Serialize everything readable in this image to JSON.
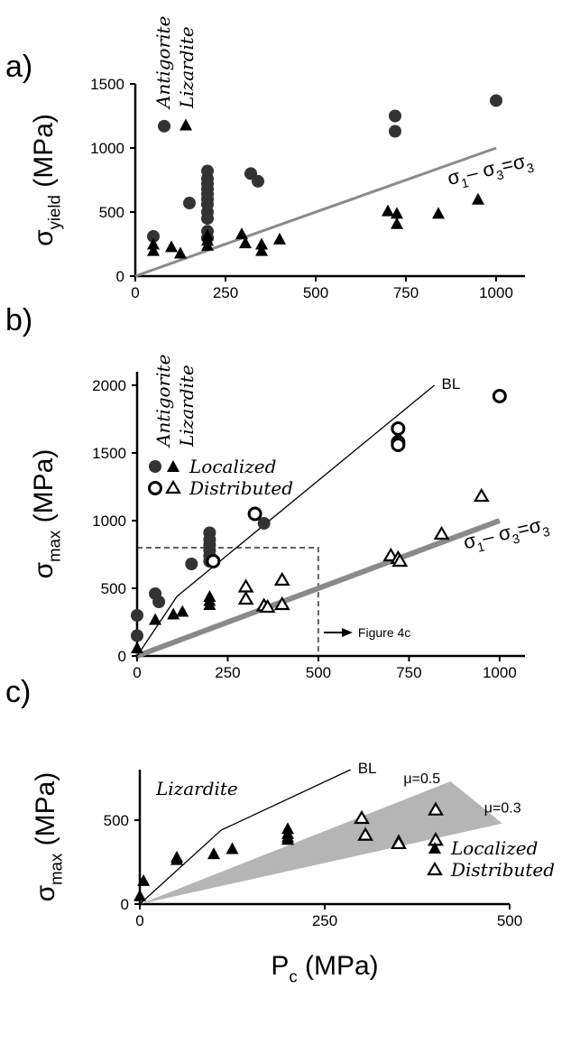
{
  "chart_data": [
    {
      "panel": "a)",
      "type": "scatter",
      "ylabel_symbol": "σ",
      "ylabel_sub": "yield",
      "ylabel_unit": "(MPa)",
      "xlabel": "",
      "xlim": [
        0,
        1080
      ],
      "ylim": [
        0,
        1500
      ],
      "xticks": [
        "0",
        "250",
        "500",
        "750",
        "1000"
      ],
      "yticks": [
        "0",
        "500",
        "1000",
        "1500"
      ],
      "mineral_labels": [
        "Antigorite",
        "Lizardite"
      ],
      "series": [
        {
          "name": "Antigorite",
          "marker": "filled-circle",
          "points": [
            [
              80,
              1170
            ],
            [
              50,
              310
            ],
            [
              150,
              570
            ],
            [
              200,
              820
            ],
            [
              200,
              760
            ],
            [
              200,
              720
            ],
            [
              200,
              680
            ],
            [
              200,
              640
            ],
            [
              200,
              600
            ],
            [
              200,
              560
            ],
            [
              200,
              500
            ],
            [
              200,
              450
            ],
            [
              200,
              350
            ],
            [
              200,
              300
            ],
            [
              320,
              800
            ],
            [
              340,
              740
            ],
            [
              720,
              1250
            ],
            [
              720,
              1130
            ],
            [
              1000,
              1370
            ]
          ]
        },
        {
          "name": "Lizardite",
          "marker": "filled-triangle",
          "points": [
            [
              140,
              1180
            ],
            [
              50,
              250
            ],
            [
              50,
              200
            ],
            [
              100,
              230
            ],
            [
              125,
              180
            ],
            [
              200,
              320
            ],
            [
              200,
              280
            ],
            [
              200,
              240
            ],
            [
              295,
              330
            ],
            [
              305,
              260
            ],
            [
              350,
              250
            ],
            [
              350,
              200
            ],
            [
              400,
              290
            ],
            [
              700,
              510
            ],
            [
              725,
              490
            ],
            [
              725,
              410
            ],
            [
              840,
              490
            ],
            [
              950,
              600
            ]
          ]
        }
      ],
      "reference_line": {
        "label_parts": [
          "σ",
          "1",
          "– ",
          "σ",
          "3",
          "=",
          "σ",
          "3"
        ],
        "points": [
          [
            0,
            0
          ],
          [
            1000,
            1000
          ]
        ]
      }
    },
    {
      "panel": "b)",
      "type": "scatter",
      "ylabel_symbol": "σ",
      "ylabel_sub": "max",
      "ylabel_unit": "(MPa)",
      "xlabel": "",
      "xlim": [
        0,
        1070
      ],
      "ylim": [
        0,
        2100
      ],
      "xticks": [
        "0",
        "250",
        "500",
        "750",
        "1000"
      ],
      "yticks": [
        "0",
        "500",
        "1000",
        "1500",
        "2000"
      ],
      "mineral_labels": [
        "Antigorite",
        "Lizardite"
      ],
      "legend": [
        {
          "marker": "filled-circle",
          "marker2": "filled-triangle",
          "label": "Localized"
        },
        {
          "marker": "open-circle",
          "marker2": "open-triangle",
          "label": "Distributed"
        }
      ],
      "series": [
        {
          "name": "Antigorite localized",
          "marker": "filled-circle",
          "points": [
            [
              0,
              300
            ],
            [
              0,
              150
            ],
            [
              50,
              460
            ],
            [
              60,
              400
            ],
            [
              150,
              680
            ],
            [
              200,
              910
            ],
            [
              200,
              860
            ],
            [
              200,
              820
            ],
            [
              200,
              780
            ],
            [
              200,
              740
            ],
            [
              200,
              700
            ],
            [
              350,
              980
            ]
          ]
        },
        {
          "name": "Antigorite distributed",
          "marker": "open-circle",
          "points": [
            [
              210,
              700
            ],
            [
              325,
              1050
            ],
            [
              720,
              1680
            ],
            [
              720,
              1580
            ],
            [
              720,
              1560
            ],
            [
              1000,
              1920
            ]
          ]
        },
        {
          "name": "Lizardite localized",
          "marker": "filled-triangle",
          "points": [
            [
              0,
              60
            ],
            [
              50,
              270
            ],
            [
              100,
              310
            ],
            [
              125,
              330
            ],
            [
              200,
              440
            ],
            [
              200,
              410
            ],
            [
              200,
              380
            ]
          ]
        },
        {
          "name": "Lizardite distributed",
          "marker": "open-triangle",
          "points": [
            [
              300,
              510
            ],
            [
              300,
              420
            ],
            [
              350,
              370
            ],
            [
              360,
              360
            ],
            [
              400,
              560
            ],
            [
              400,
              380
            ],
            [
              700,
              740
            ],
            [
              720,
              720
            ],
            [
              725,
              700
            ],
            [
              840,
              900
            ],
            [
              950,
              1180
            ]
          ]
        }
      ],
      "bl_line": {
        "label": "BL",
        "points": [
          [
            0,
            0
          ],
          [
            110,
            440
          ],
          [
            820,
            2000
          ]
        ]
      },
      "reference_line": {
        "label_parts": [
          "σ",
          "1",
          "– ",
          "σ",
          "3",
          "=",
          "σ",
          "3"
        ],
        "points": [
          [
            0,
            0
          ],
          [
            1000,
            1000
          ]
        ]
      },
      "inset_box": {
        "x": [
          0,
          500
        ],
        "y": [
          0,
          800
        ],
        "label": "Figure 4c"
      }
    },
    {
      "panel": "c)",
      "type": "scatter",
      "ylabel_symbol": "σ",
      "ylabel_sub": "max",
      "ylabel_unit": "(MPa)",
      "xlabel_symbol": "P",
      "xlabel_sub": "c",
      "xlabel_unit": "(MPa)",
      "xlim": [
        0,
        500
      ],
      "ylim": [
        0,
        800
      ],
      "xticks": [
        "0",
        "250",
        "500"
      ],
      "yticks": [
        "0",
        "500"
      ],
      "mineral_label": "Lizardite",
      "legend": [
        {
          "marker": "filled-triangle",
          "label": "Localized"
        },
        {
          "marker": "open-triangle",
          "label": "Distributed"
        }
      ],
      "series": [
        {
          "name": "Localized",
          "marker": "filled-triangle",
          "points": [
            [
              0,
              50
            ],
            [
              5,
              140
            ],
            [
              50,
              280
            ],
            [
              50,
              265
            ],
            [
              100,
              300
            ],
            [
              125,
              330
            ],
            [
              200,
              450
            ],
            [
              200,
              420
            ],
            [
              200,
              400
            ],
            [
              200,
              385
            ],
            [
              350,
              380
            ],
            [
              350,
              360
            ]
          ]
        },
        {
          "name": "Distributed",
          "marker": "open-triangle",
          "points": [
            [
              300,
              510
            ],
            [
              305,
              410
            ],
            [
              350,
              360
            ],
            [
              400,
              560
            ],
            [
              400,
              380
            ]
          ]
        }
      ],
      "bl_line": {
        "label": "BL",
        "points": [
          [
            0,
            0
          ],
          [
            110,
            440
          ],
          [
            285,
            800
          ]
        ]
      },
      "friction_band": {
        "upper_label": "μ=0.5",
        "lower_label": "μ=0.3",
        "upper": [
          [
            0,
            0
          ],
          [
            420,
            730
          ]
        ],
        "lower": [
          [
            0,
            0
          ],
          [
            490,
            480
          ]
        ]
      }
    }
  ]
}
